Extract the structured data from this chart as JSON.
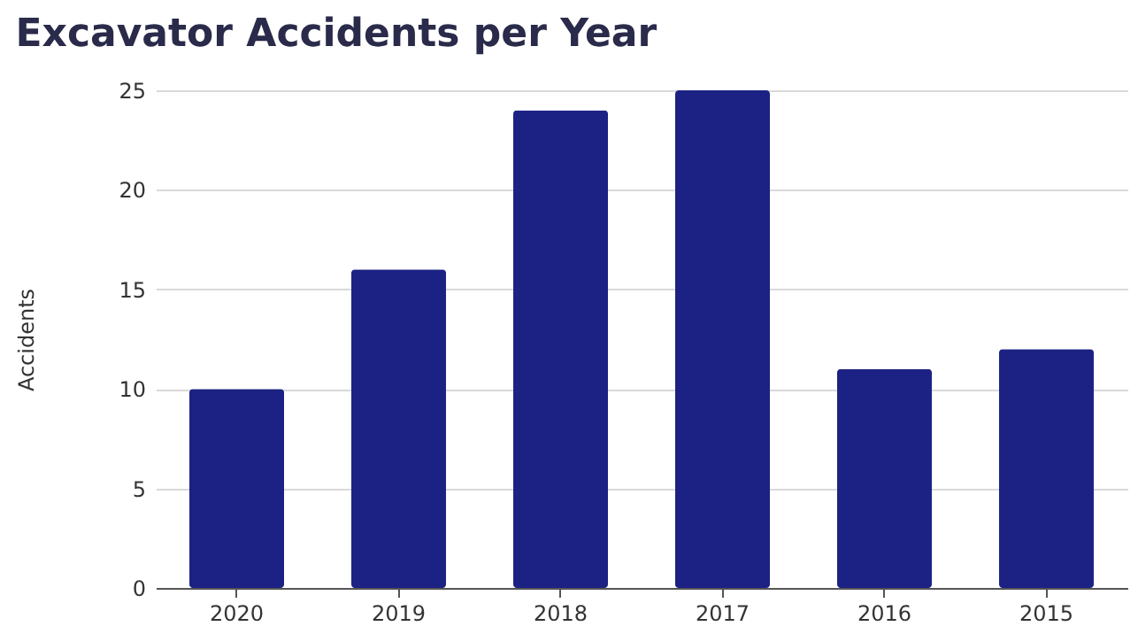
{
  "chart_data": {
    "type": "bar",
    "title": "Excavator Accidents per Year",
    "ylabel": "Accidents",
    "categories": [
      "2020",
      "2019",
      "2018",
      "2017",
      "2016",
      "2015"
    ],
    "values": [
      10,
      16,
      24,
      25,
      11,
      12
    ],
    "color": "#1c2283",
    "ylim": [
      0,
      25
    ],
    "yticks": [
      0,
      5,
      10,
      15,
      20,
      25
    ],
    "grid": "y"
  }
}
